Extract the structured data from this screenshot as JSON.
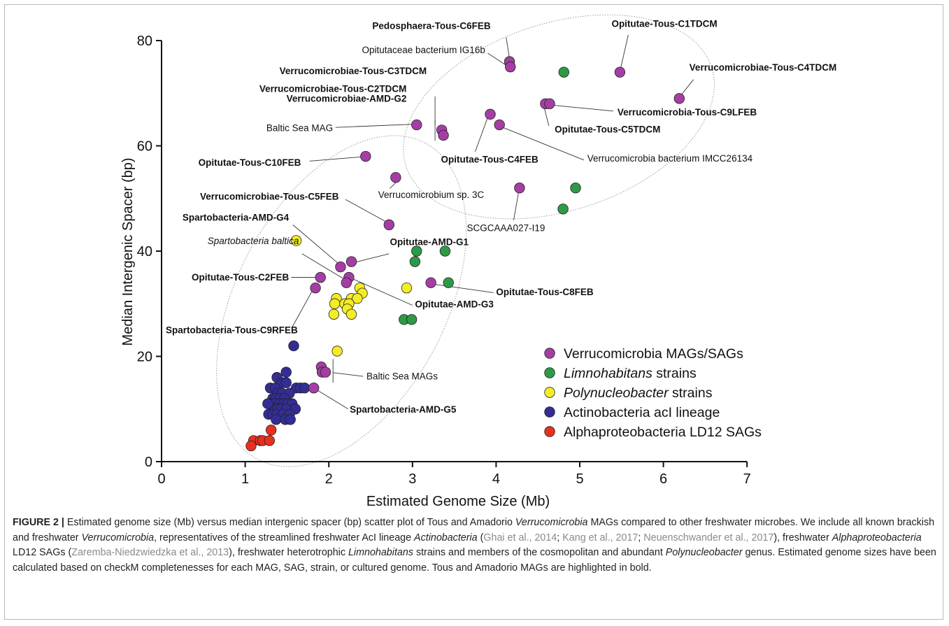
{
  "figure": {
    "colors": {
      "verrucomicrobia": "#a53ea4",
      "limnohabitans": "#2e9a48",
      "polynucleobacter": "#f4ec25",
      "actinobacteria": "#332d95",
      "alphaproteobacteria": "#e8301f",
      "outline": "#222222",
      "ellipse": "#9c9c9c"
    },
    "caption": {
      "label": "FIGURE 2 |",
      "t1": " Estimated genome size (Mb) versus median intergenic spacer (bp) scatter plot of Tous and Amadorio ",
      "i1": "Verrucomicrobia",
      "t2": " MAGs compared to other freshwater microbes. We include all known brackish and freshwater ",
      "i2": "Verrucomicrobia",
      "t3": ", representatives of the streamlined freshwater AcI lineage ",
      "i3": "Actinobacteria",
      "t4": " (",
      "r1": "Ghai et al., 2014",
      "t5": "; ",
      "r2": "Kang et al., 2017",
      "t6": "; ",
      "r3": "Neuenschwander et al., 2017",
      "t7": "), freshwater ",
      "i4": "Alphaproteobacteria",
      "t8": " LD12 SAGs (",
      "r4": "Zaremba-Niedzwiedzka et al., 2013",
      "t9": "), freshwater heterotrophic ",
      "i5": "Limnohabitans",
      "t10": " strains and members of the cosmopolitan and abundant ",
      "i6": "Polynucleobacter",
      "t11": " genus. Estimated genome sizes have been calculated based on checkM completenesses for each MAG, SAG, strain, or cultured genome. Tous and Amadorio MAGs are highlighted in bold."
    }
  },
  "chart_data": {
    "type": "scatter",
    "title": "",
    "xlabel": "Estimated Genome Size (Mb)",
    "ylabel": "Median Intergenic Spacer (bp)",
    "xlim": [
      0,
      7
    ],
    "ylim": [
      0,
      80
    ],
    "xticks": [
      "0",
      "1",
      "2",
      "3",
      "4",
      "5",
      "6",
      "7"
    ],
    "yticks": [
      "0",
      "20",
      "40",
      "60",
      "80"
    ],
    "legend_position": "bottom-right",
    "series": [
      {
        "key": "verrucomicrobia",
        "name": "Verrucomicrobia MAGs/SAGs",
        "points": [
          [
            4.16,
            76
          ],
          [
            4.17,
            75
          ],
          [
            5.48,
            74
          ],
          [
            6.19,
            69
          ],
          [
            4.59,
            68
          ],
          [
            4.64,
            68
          ],
          [
            3.93,
            66
          ],
          [
            4.04,
            64
          ],
          [
            3.05,
            64
          ],
          [
            3.35,
            63
          ],
          [
            3.37,
            62
          ],
          [
            2.44,
            58
          ],
          [
            2.8,
            54
          ],
          [
            4.28,
            52
          ],
          [
            2.72,
            45
          ],
          [
            2.14,
            37
          ],
          [
            2.27,
            38
          ],
          [
            2.24,
            35
          ],
          [
            2.21,
            34
          ],
          [
            3.22,
            34
          ],
          [
            1.9,
            35
          ],
          [
            1.84,
            33
          ],
          [
            1.91,
            18
          ],
          [
            1.92,
            17
          ],
          [
            1.96,
            17
          ],
          [
            1.82,
            14
          ]
        ]
      },
      {
        "key": "limnohabitans",
        "name": "Limnohabitans strains",
        "points": [
          [
            4.81,
            74
          ],
          [
            4.95,
            52
          ],
          [
            4.8,
            48
          ],
          [
            3.05,
            40
          ],
          [
            3.39,
            40
          ],
          [
            3.03,
            38
          ],
          [
            3.43,
            34
          ],
          [
            2.9,
            27
          ],
          [
            2.99,
            27
          ]
        ]
      },
      {
        "key": "polynucleobacter",
        "name": "Polynucleobacter strains",
        "points": [
          [
            1.61,
            42
          ],
          [
            2.37,
            33
          ],
          [
            2.4,
            32
          ],
          [
            2.09,
            31
          ],
          [
            2.27,
            31
          ],
          [
            2.34,
            31
          ],
          [
            2.07,
            30
          ],
          [
            2.19,
            30
          ],
          [
            2.24,
            30
          ],
          [
            2.22,
            29
          ],
          [
            2.06,
            28
          ],
          [
            2.27,
            28
          ],
          [
            2.93,
            33
          ],
          [
            2.1,
            21
          ]
        ]
      },
      {
        "key": "actinobacteria",
        "name": "Actinobacteria acI lineage",
        "points": [
          [
            1.58,
            22
          ],
          [
            1.49,
            17
          ],
          [
            1.38,
            16
          ],
          [
            1.44,
            15
          ],
          [
            1.49,
            15
          ],
          [
            1.3,
            14
          ],
          [
            1.36,
            14
          ],
          [
            1.61,
            14
          ],
          [
            1.66,
            14
          ],
          [
            1.71,
            14
          ],
          [
            1.39,
            13
          ],
          [
            1.44,
            13
          ],
          [
            1.53,
            13
          ],
          [
            1.33,
            12
          ],
          [
            1.37,
            12
          ],
          [
            1.42,
            12
          ],
          [
            1.47,
            12
          ],
          [
            1.3,
            11
          ],
          [
            1.35,
            11
          ],
          [
            1.41,
            11
          ],
          [
            1.46,
            11
          ],
          [
            1.51,
            11
          ],
          [
            1.56,
            11
          ],
          [
            1.34,
            10
          ],
          [
            1.39,
            10
          ],
          [
            1.43,
            10
          ],
          [
            1.49,
            10
          ],
          [
            1.6,
            10
          ],
          [
            1.28,
            9
          ],
          [
            1.33,
            9
          ],
          [
            1.38,
            9
          ],
          [
            1.45,
            9
          ],
          [
            1.53,
            9
          ],
          [
            1.37,
            8
          ],
          [
            1.48,
            8
          ],
          [
            1.54,
            8
          ],
          [
            1.27,
            11
          ]
        ]
      },
      {
        "key": "alphaproteobacteria",
        "name": "Alphaproteobacteria LD12 SAGs",
        "points": [
          [
            1.31,
            6
          ],
          [
            1.1,
            4
          ],
          [
            1.18,
            4
          ],
          [
            1.21,
            4
          ],
          [
            1.29,
            4
          ],
          [
            1.07,
            3
          ]
        ]
      }
    ],
    "point_labels": [
      {
        "text": "Pedosphaera-Tous-C6FEB",
        "bold": true,
        "italic": false,
        "at": [
          2.52,
          82.2
        ],
        "anchor": "start",
        "leader": [
          [
            4.12,
            80.6
          ],
          [
            4.16,
            76.6
          ]
        ]
      },
      {
        "text": "Opitutae-Tous-C1TDCM",
        "bold": true,
        "italic": false,
        "at": [
          5.38,
          82.6
        ],
        "anchor": "start",
        "leader": [
          [
            5.58,
            81.1
          ],
          [
            5.49,
            74.8
          ]
        ]
      },
      {
        "text": "Opitutaceae bacterium IG16b",
        "bold": false,
        "italic": false,
        "at": [
          3.87,
          77.6
        ],
        "anchor": "end",
        "leader": [
          [
            3.9,
            77.6
          ],
          [
            4.13,
            75.2
          ]
        ]
      },
      {
        "text": "Verrucomicrobiae-Tous-C3TDCM",
        "bold": true,
        "italic": false,
        "at": [
          3.17,
          73.6
        ],
        "anchor": "end",
        "leader": null
      },
      {
        "text": "Verrucomicrobiae-Tous-C4TDCM",
        "bold": true,
        "italic": false,
        "at": [
          6.31,
          74.3
        ],
        "anchor": "start",
        "leader": [
          [
            6.36,
            72.6
          ],
          [
            6.22,
            69.8
          ]
        ]
      },
      {
        "text": "Verrucomicrobiae-Tous-C2TDCM",
        "bold": true,
        "italic": false,
        "at": [
          2.93,
          70.2
        ],
        "anchor": "end",
        "leader": null
      },
      {
        "text": "Verrucomicrobiae-AMD-G2",
        "bold": true,
        "italic": false,
        "at": [
          2.93,
          68.4
        ],
        "anchor": "end",
        "leader": [
          [
            3.27,
            69.4
          ],
          [
            3.27,
            64.1
          ]
        ]
      },
      {
        "text": "Verrucomicrobia-Tous-C9LFEB",
        "bold": true,
        "italic": false,
        "at": [
          5.45,
          65.8
        ],
        "anchor": "start",
        "leader": [
          [
            5.4,
            66.6
          ],
          [
            4.69,
            67.7
          ]
        ]
      },
      {
        "text": "Baltic Sea MAG",
        "bold": false,
        "italic": false,
        "at": [
          2.05,
          62.8
        ],
        "anchor": "end",
        "leader": [
          [
            2.08,
            63.5
          ],
          [
            3.0,
            64.1
          ]
        ]
      },
      {
        "text": "Opitutae-Tous-C5TDCM",
        "bold": true,
        "italic": false,
        "at": [
          4.7,
          62.5
        ],
        "anchor": "start",
        "leader": [
          [
            4.63,
            63.8
          ],
          [
            4.57,
            67.6
          ]
        ]
      },
      {
        "text": "Opitutae-Tous-C4FEB",
        "bold": true,
        "italic": false,
        "at": [
          3.34,
          56.8
        ],
        "anchor": "start",
        "leader": [
          [
            3.75,
            58.9
          ],
          [
            3.9,
            65.4
          ]
        ]
      },
      {
        "text": "Verrucomicrobia bacterium IMCC26134",
        "bold": false,
        "italic": false,
        "at": [
          5.09,
          57.0
        ],
        "anchor": "start",
        "leader": [
          [
            5.05,
            57.3
          ],
          [
            4.08,
            63.5
          ]
        ]
      },
      {
        "text": "Opitutae-Tous-C10FEB",
        "bold": true,
        "italic": false,
        "at": [
          0.44,
          56.2
        ],
        "anchor": "start",
        "leader": [
          [
            1.77,
            57.1
          ],
          [
            2.39,
            57.9
          ]
        ]
      },
      {
        "text": "Verrucomicrobium sp. 3C",
        "bold": false,
        "italic": false,
        "at": [
          2.59,
          50.1
        ],
        "anchor": "start",
        "leader": [
          [
            2.73,
            51.9
          ],
          [
            2.83,
            53.5
          ]
        ]
      },
      {
        "text": "SCGCAAA027-I19",
        "bold": false,
        "italic": false,
        "at": [
          3.65,
          43.8
        ],
        "anchor": "start",
        "leader": [
          [
            4.21,
            45.9
          ],
          [
            4.27,
            51.3
          ]
        ]
      },
      {
        "text": "Verrucomicrobiae-Tous-C5FEB",
        "bold": true,
        "italic": false,
        "at": [
          0.46,
          49.8
        ],
        "anchor": "start",
        "leader": [
          [
            2.2,
            49.8
          ],
          [
            2.67,
            45.7
          ]
        ]
      },
      {
        "text": "Spartobacteria-AMD-G4",
        "bold": true,
        "italic": false,
        "at": [
          0.25,
          45.8
        ],
        "anchor": "start",
        "leader": [
          [
            1.57,
            45.0
          ],
          [
            2.11,
            37.7
          ]
        ]
      },
      {
        "text": "Opitutae-AMD-G1",
        "bold": true,
        "italic": false,
        "at": [
          2.73,
          41.1
        ],
        "anchor": "start",
        "leader": [
          [
            2.72,
            39.5
          ],
          [
            2.32,
            37.9
          ]
        ]
      },
      {
        "text": "Spartobacteria baltica",
        "bold": false,
        "italic": true,
        "at": [
          0.55,
          41.3
        ],
        "anchor": "start",
        "leader": [
          [
            1.68,
            39.5
          ],
          [
            2.17,
            34.8
          ]
        ]
      },
      {
        "text": "Opitutae-Tous-C2FEB",
        "bold": true,
        "italic": false,
        "at": [
          0.36,
          34.4
        ],
        "anchor": "start",
        "leader": [
          [
            1.55,
            35.0
          ],
          [
            1.86,
            35.0
          ]
        ]
      },
      {
        "text": "Opitutae-Tous-C8FEB",
        "bold": true,
        "italic": false,
        "at": [
          4.0,
          31.6
        ],
        "anchor": "start",
        "leader": [
          [
            3.97,
            32.1
          ],
          [
            3.26,
            33.7
          ]
        ]
      },
      {
        "text": "Opitutae-AMD-G3",
        "bold": true,
        "italic": false,
        "at": [
          3.03,
          29.3
        ],
        "anchor": "start",
        "leader": [
          [
            3.0,
            29.7
          ],
          [
            2.29,
            34.7
          ]
        ]
      },
      {
        "text": "Spartobacteria-Tous-C9RFEB",
        "bold": true,
        "italic": false,
        "at": [
          0.05,
          24.4
        ],
        "anchor": "start",
        "leader": [
          [
            1.56,
            25.5
          ],
          [
            1.8,
            32.4
          ]
        ]
      },
      {
        "text": "Baltic Sea MAGs",
        "bold": false,
        "italic": false,
        "at": [
          2.45,
          15.6
        ],
        "anchor": "start",
        "leader": [
          [
            2.41,
            16.2
          ],
          [
            2.05,
            16.9
          ]
        ]
      },
      {
        "text": "Spartobacteria-AMD-G5",
        "bold": true,
        "italic": false,
        "at": [
          2.25,
          9.3
        ],
        "anchor": "start",
        "leader": [
          [
            2.23,
            10.0
          ],
          [
            1.86,
            13.6
          ]
        ]
      }
    ],
    "bracket_ticks": [
      {
        "x": 3.27,
        "y1": 61.0,
        "y2": 65.0
      },
      {
        "x": 2.05,
        "y1": 15.0,
        "y2": 19.5
      }
    ],
    "ellipses": [
      {
        "center": [
          4.75,
          65.5
        ],
        "rx_mb": 1.92,
        "ry_bp": 17.8,
        "rotation_deg": -18
      },
      {
        "center": [
          2.15,
          30.5
        ],
        "rx_mb": 1.25,
        "ry_bp": 34.0,
        "rotation_deg": 28
      }
    ]
  }
}
